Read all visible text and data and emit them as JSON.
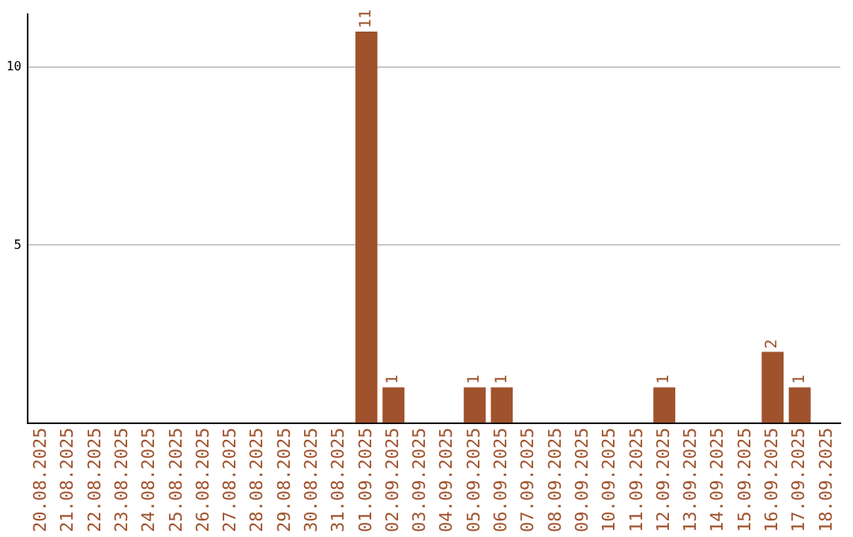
{
  "chart_data": {
    "type": "bar",
    "categories": [
      "20.08.2025",
      "21.08.2025",
      "22.08.2025",
      "23.08.2025",
      "24.08.2025",
      "25.08.2025",
      "26.08.2025",
      "27.08.2025",
      "28.08.2025",
      "29.08.2025",
      "30.08.2025",
      "31.08.2025",
      "01.09.2025",
      "02.09.2025",
      "03.09.2025",
      "04.09.2025",
      "05.09.2025",
      "06.09.2025",
      "07.09.2025",
      "08.09.2025",
      "09.09.2025",
      "10.09.2025",
      "11.09.2025",
      "12.09.2025",
      "13.09.2025",
      "14.09.2025",
      "15.09.2025",
      "16.09.2025",
      "17.09.2025",
      "18.09.2025"
    ],
    "values": [
      0,
      0,
      0,
      0,
      0,
      0,
      0,
      0,
      0,
      0,
      0,
      0,
      11,
      1,
      0,
      0,
      1,
      1,
      0,
      0,
      0,
      0,
      0,
      1,
      0,
      0,
      0,
      2,
      1,
      0
    ],
    "value_labels": [
      null,
      null,
      null,
      null,
      null,
      null,
      null,
      null,
      null,
      null,
      null,
      null,
      "11",
      "1",
      null,
      null,
      "1",
      "1",
      null,
      null,
      null,
      null,
      null,
      "1",
      null,
      null,
      null,
      "2",
      "1",
      null
    ],
    "color": "#a0522d",
    "ylim": [
      0,
      11.5
    ],
    "yticks": [
      5,
      10
    ],
    "grid": "y",
    "legend": false
  }
}
